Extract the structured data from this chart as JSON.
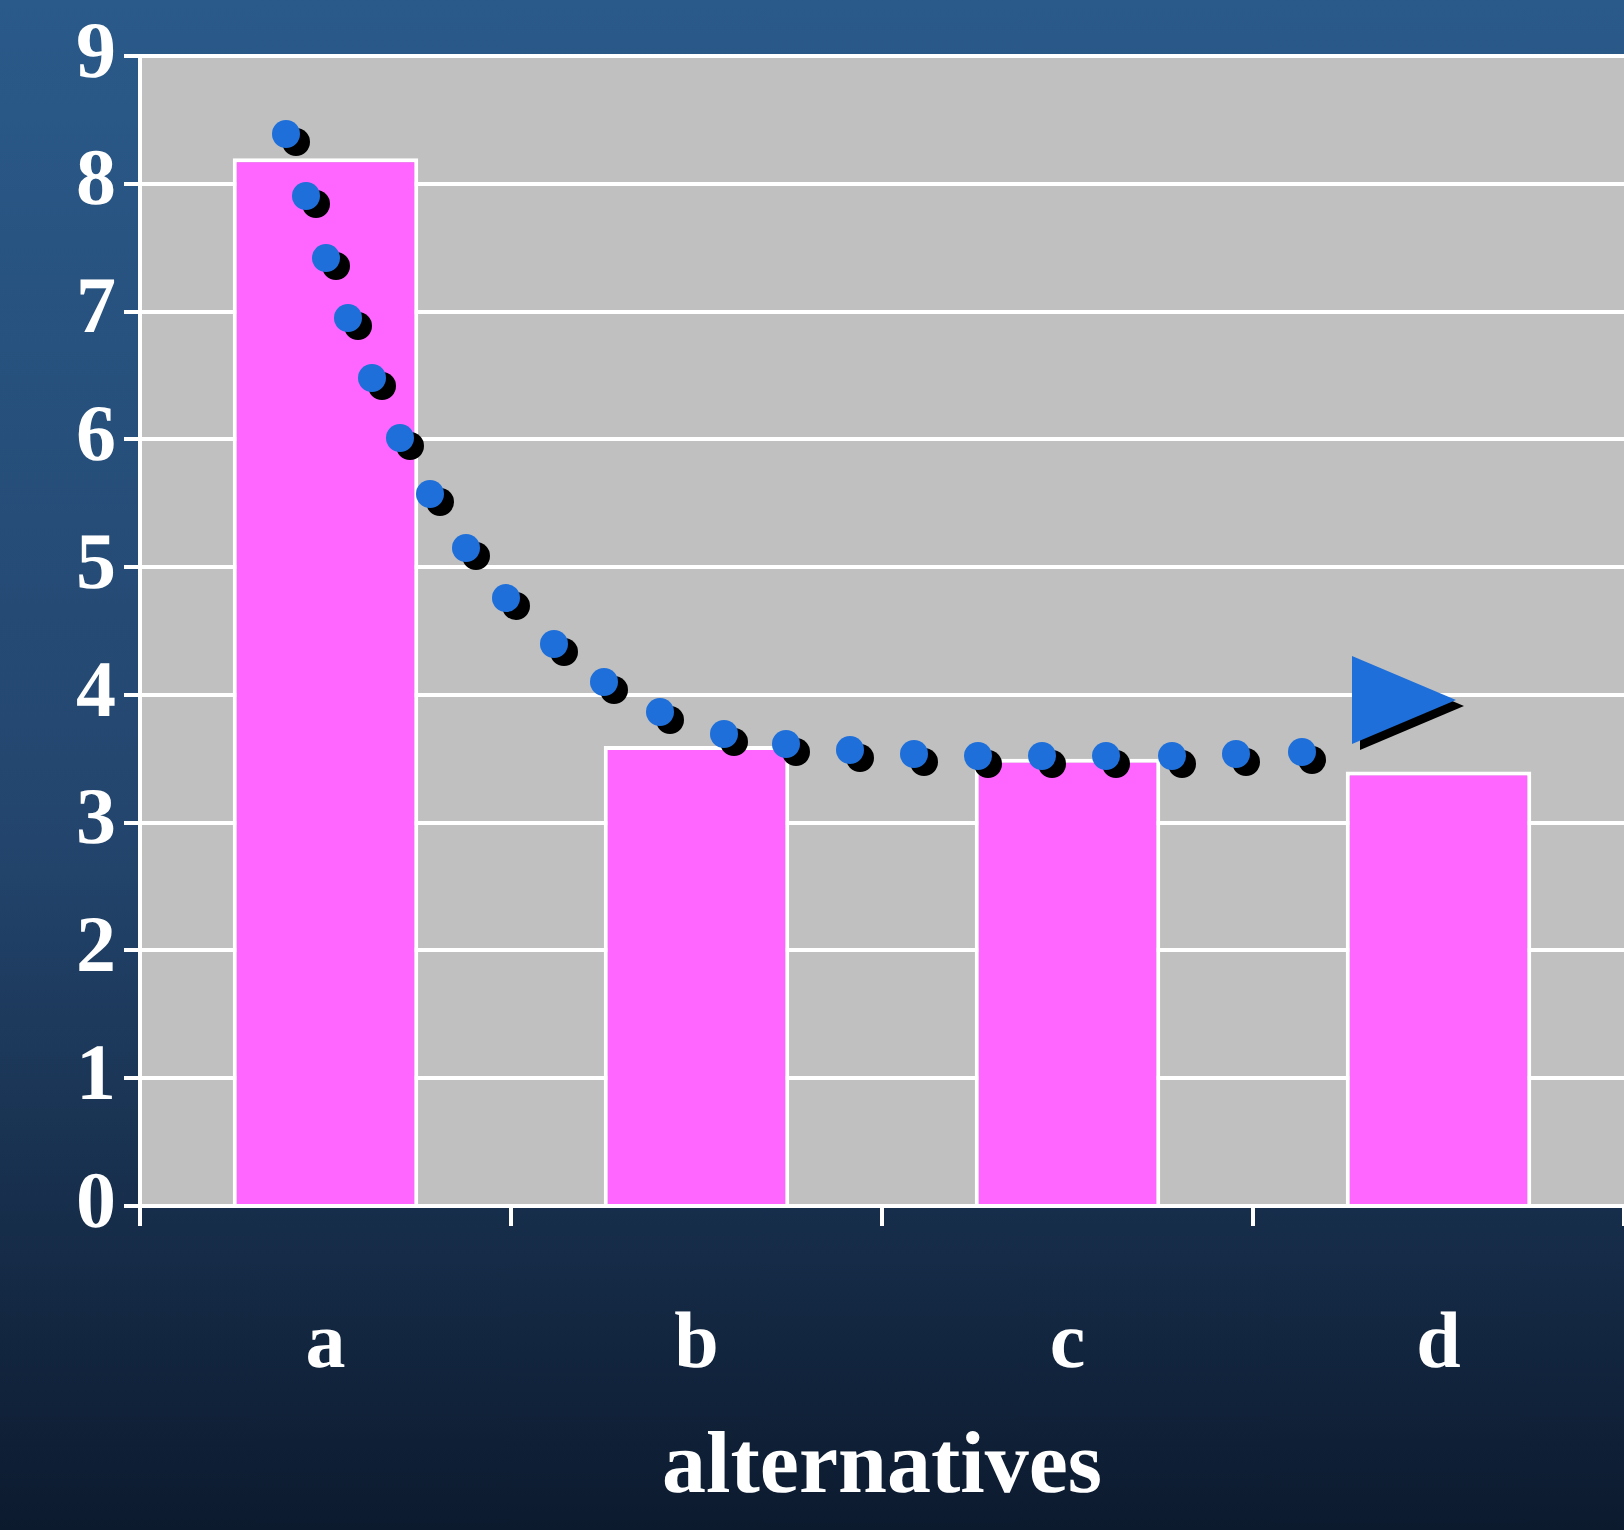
{
  "chart_data": {
    "type": "bar",
    "xlabel": "alternatives",
    "categories": [
      "a",
      "b",
      "c",
      "d"
    ],
    "values": [
      8.2,
      3.6,
      3.5,
      3.4
    ],
    "color": "#ff66ff",
    "ylim": [
      0,
      9
    ],
    "yticks": [
      0,
      1,
      2,
      3,
      4,
      5,
      6,
      7,
      8,
      9
    ],
    "grid": "y"
  }
}
